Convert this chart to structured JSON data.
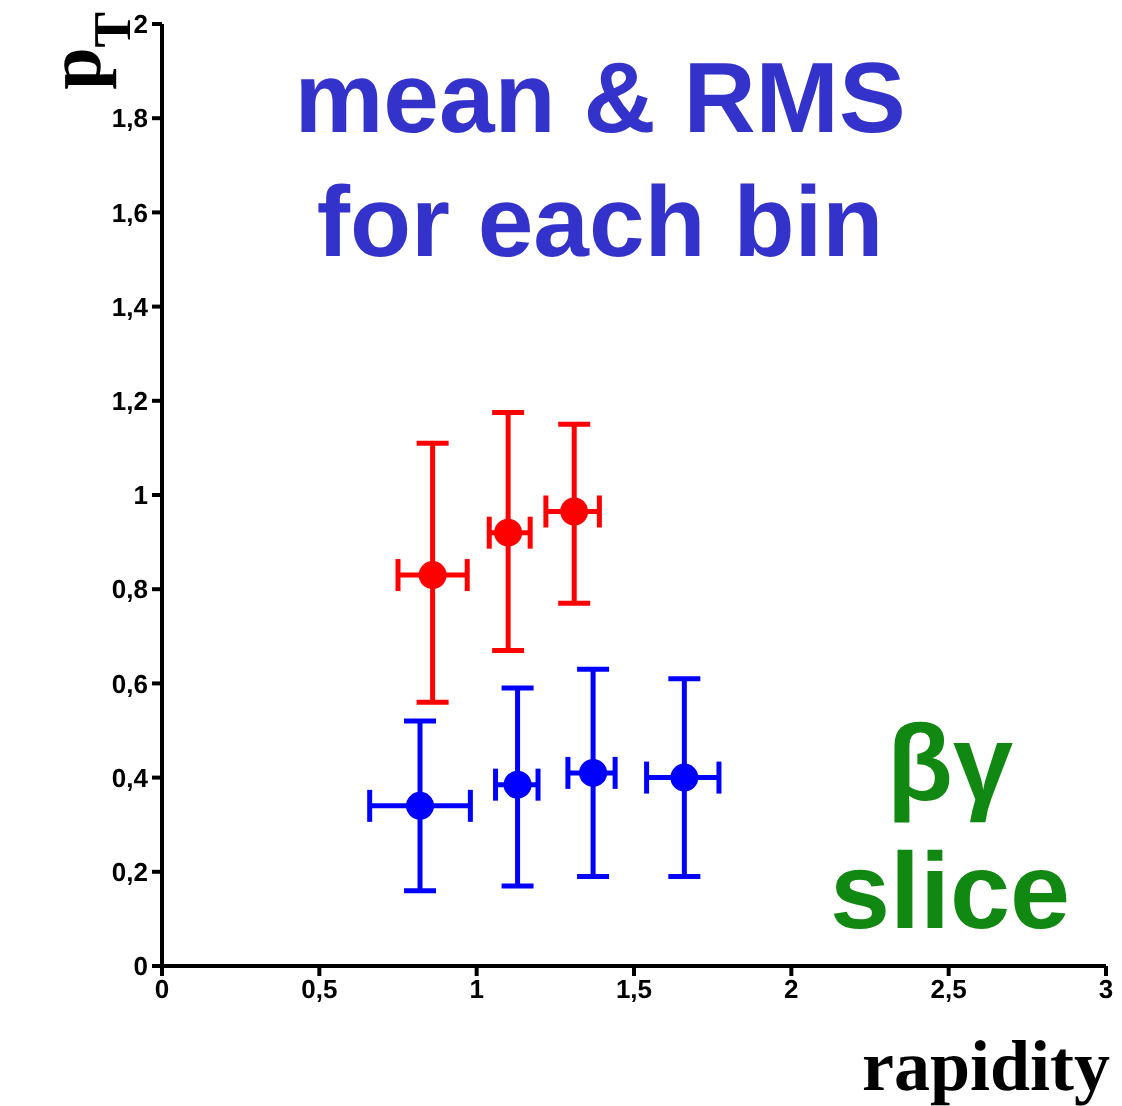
{
  "chart_data": {
    "type": "scatter",
    "xlabel": "rapidity",
    "ylabel": "p$_{T}$",
    "annotations": [
      "mean & RMS for each bin",
      "βγ slice"
    ],
    "xlim": [
      0,
      3
    ],
    "ylim": [
      0,
      2
    ],
    "xticks": [
      0,
      {
        "value": 0.5,
        "label": "0,5"
      },
      1,
      {
        "value": 1.5,
        "label": "1,5"
      },
      2,
      {
        "value": 2.5,
        "label": "2,5"
      },
      3
    ],
    "yticks": [
      0,
      {
        "value": 0.2,
        "label": "0,2"
      },
      {
        "value": 0.4,
        "label": "0,4"
      },
      {
        "value": 0.6,
        "label": "0,6"
      },
      {
        "value": 0.8,
        "label": "0,8"
      },
      1,
      {
        "value": 1.2,
        "label": "1,2"
      },
      {
        "value": 1.4,
        "label": "1,4"
      },
      {
        "value": 1.6,
        "label": "1,6"
      },
      {
        "value": 1.8,
        "label": "1,8"
      },
      2
    ],
    "grid": false,
    "legend": false,
    "marker": "circle",
    "series": [
      {
        "color": "#ff0000",
        "x": [
          0.86,
          1.1,
          1.31
        ],
        "values": [
          0.83,
          0.92,
          0.965
        ],
        "errors": [
          [
            0.56,
            1.11
          ],
          [
            0.67,
            1.175
          ],
          [
            0.77,
            1.15
          ]
        ],
        "xerrors": [
          [
            0.75,
            0.97
          ],
          [
            1.04,
            1.17
          ],
          [
            1.22,
            1.39
          ]
        ]
      },
      {
        "color": "#0000ff",
        "x": [
          0.82,
          1.13,
          1.37,
          1.66
        ],
        "values": [
          0.34,
          0.385,
          0.41,
          0.4
        ],
        "errors": [
          [
            0.16,
            0.52
          ],
          [
            0.17,
            0.59
          ],
          [
            0.19,
            0.63
          ],
          [
            0.19,
            0.61
          ]
        ],
        "xerrors": [
          [
            0.66,
            0.98
          ],
          [
            1.06,
            1.195
          ],
          [
            1.29,
            1.44
          ],
          [
            1.54,
            1.77
          ]
        ]
      }
    ]
  }
}
